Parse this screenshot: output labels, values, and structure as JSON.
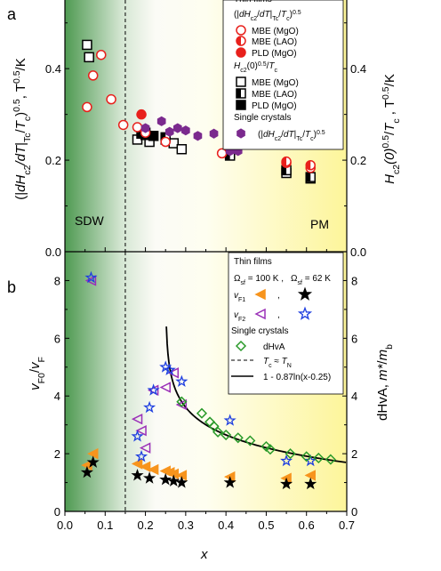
{
  "chart_data": [
    {
      "panel": "a",
      "type": "scatter",
      "xlabel": "",
      "ylabel_left": "(|dH_c2/dT|_Tc/T_c)^0.5, T^0.5/K",
      "ylabel_right": "H_c2(0)^0.5/T_c, T^0.5/K",
      "xlim": [
        0,
        0.7
      ],
      "ylim": [
        0,
        0.55
      ],
      "yticks": [
        "0.0",
        "0.2",
        "0.4"
      ],
      "regions": [
        "SDW",
        "PM"
      ],
      "vline_x": 0.15,
      "legend": {
        "title_top": "Thin films",
        "group1_title": "(|dH_c2/dT|_Tc/T_c)^0.5",
        "group2_title": "H_c2(0)^0.5/T_c",
        "group3_title": "Single crystals"
      },
      "series": [
        {
          "name": "MBE (MgO)",
          "group": "slope",
          "marker": "circle-open",
          "color": "#e8201c",
          "x": [
            0.055,
            0.07,
            0.09,
            0.115,
            0.145,
            0.18,
            0.2,
            0.25,
            0.39,
            0.55,
            0.61
          ],
          "y": [
            0.316,
            0.385,
            0.43,
            0.333,
            0.277,
            0.272,
            0.26,
            0.24,
            0.215,
            0.194,
            0.183
          ]
        },
        {
          "name": "MBE (LAO)",
          "group": "slope",
          "marker": "circle-half",
          "color": "#e8201c",
          "x": [
            0.55,
            0.61
          ],
          "y": [
            0.197,
            0.189
          ]
        },
        {
          "name": "PLD (MgO)",
          "group": "slope",
          "marker": "circle-filled",
          "color": "#e8201c",
          "x": [
            0.19
          ],
          "y": [
            0.3
          ]
        },
        {
          "name": "MBE (MgO)",
          "group": "hc2",
          "marker": "square-open",
          "color": "#000000",
          "x": [
            0.055,
            0.06,
            0.18,
            0.21,
            0.25,
            0.27,
            0.29,
            0.41,
            0.55,
            0.61
          ],
          "y": [
            0.452,
            0.425,
            0.245,
            0.24,
            0.245,
            0.237,
            0.224,
            0.213,
            0.172,
            0.16
          ]
        },
        {
          "name": "MBE (LAO)",
          "group": "hc2",
          "marker": "square-half",
          "color": "#000000",
          "x": [
            0.19,
            0.2,
            0.25,
            0.41,
            0.55,
            0.61
          ],
          "y": [
            0.258,
            0.26,
            0.25,
            0.21,
            0.178,
            0.163
          ]
        },
        {
          "name": "PLD (MgO)",
          "group": "hc2",
          "marker": "square-filled",
          "color": "#000000",
          "x": [
            0.2,
            0.22
          ],
          "y": [
            0.255,
            0.253
          ]
        },
        {
          "name": "(|dH_c2/dT|_Tc/T_c)^0.5",
          "group": "crystal",
          "marker": "hexagon-filled",
          "color": "#7b2a8e",
          "x": [
            0.2,
            0.24,
            0.26,
            0.28,
            0.3,
            0.33,
            0.37,
            0.41,
            0.43
          ],
          "y": [
            0.27,
            0.285,
            0.262,
            0.27,
            0.265,
            0.253,
            0.258,
            0.22,
            0.22
          ]
        }
      ]
    },
    {
      "panel": "b",
      "type": "scatter",
      "xlabel": "x",
      "ylabel_left": "v_F0/v_F",
      "ylabel_right": "dHvA, m*/m_b",
      "xlim": [
        0,
        0.7
      ],
      "ylim": [
        0,
        9
      ],
      "xticks": [
        "0.0",
        "0.1",
        "0.2",
        "0.3",
        "0.4",
        "0.5",
        "0.6",
        "0.7"
      ],
      "yticks": [
        "0",
        "2",
        "4",
        "6",
        "8"
      ],
      "vline_x": 0.15,
      "fit_curve": "1 - 0.87ln(x-0.25)",
      "legend": {
        "title_top": "Thin films",
        "omega_1": "Ω_sf = 100 K ,",
        "omega_2": "Ω_sf = 62 K",
        "vf1_label": "v_F1",
        "vf2_label": "v_F2",
        "sc_title": "Single crystals",
        "dhva_label": "dHvA",
        "tc_label": "T_c ≈ T_N",
        "fit_label": "1 - 0.87ln(x-0.25)"
      },
      "series": [
        {
          "name": "v_F1 (Ω_sf = 100 K)",
          "marker": "triangle-left-filled",
          "color": "#f7941d",
          "x": [
            0.055,
            0.07,
            0.18,
            0.2,
            0.22,
            0.25,
            0.26,
            0.27,
            0.29,
            0.41,
            0.55,
            0.61
          ],
          "y": [
            1.6,
            2.0,
            1.65,
            1.55,
            1.45,
            1.4,
            1.35,
            1.3,
            1.25,
            1.2,
            1.15,
            1.25
          ]
        },
        {
          "name": "v_F1 (Ω_sf = 62 K)",
          "marker": "star-filled",
          "color": "#000000",
          "x": [
            0.055,
            0.07,
            0.18,
            0.21,
            0.25,
            0.27,
            0.29,
            0.41,
            0.55,
            0.61
          ],
          "y": [
            1.35,
            1.7,
            1.25,
            1.15,
            1.1,
            1.05,
            1.0,
            1.0,
            0.95,
            0.95
          ]
        },
        {
          "name": "v_F2 (Ω_sf = 100 K)",
          "marker": "triangle-left-open",
          "color": "#9b30b8",
          "x": [
            0.065,
            0.18,
            0.19,
            0.2,
            0.22,
            0.25,
            0.27,
            0.29
          ],
          "y": [
            8.0,
            3.2,
            2.8,
            2.2,
            4.2,
            4.3,
            4.8,
            3.7
          ]
        },
        {
          "name": "v_F2 (Ω_sf = 62 K)",
          "marker": "star-open",
          "color": "#1f3fe0",
          "x": [
            0.065,
            0.18,
            0.19,
            0.21,
            0.22,
            0.25,
            0.26,
            0.29,
            0.41,
            0.55,
            0.61
          ],
          "y": [
            8.1,
            2.6,
            1.9,
            3.6,
            4.2,
            5.0,
            4.9,
            4.5,
            3.15,
            1.75,
            1.75
          ]
        },
        {
          "name": "dHvA",
          "marker": "diamond-open",
          "color": "#2a9a2a",
          "x": [
            0.29,
            0.34,
            0.36,
            0.37,
            0.38,
            0.4,
            0.43,
            0.46,
            0.5,
            0.51,
            0.56,
            0.6,
            0.63,
            0.66
          ],
          "y": [
            3.8,
            3.4,
            3.1,
            2.95,
            2.75,
            2.65,
            2.55,
            2.45,
            2.25,
            2.15,
            2.0,
            1.9,
            1.85,
            1.8
          ]
        }
      ]
    }
  ]
}
